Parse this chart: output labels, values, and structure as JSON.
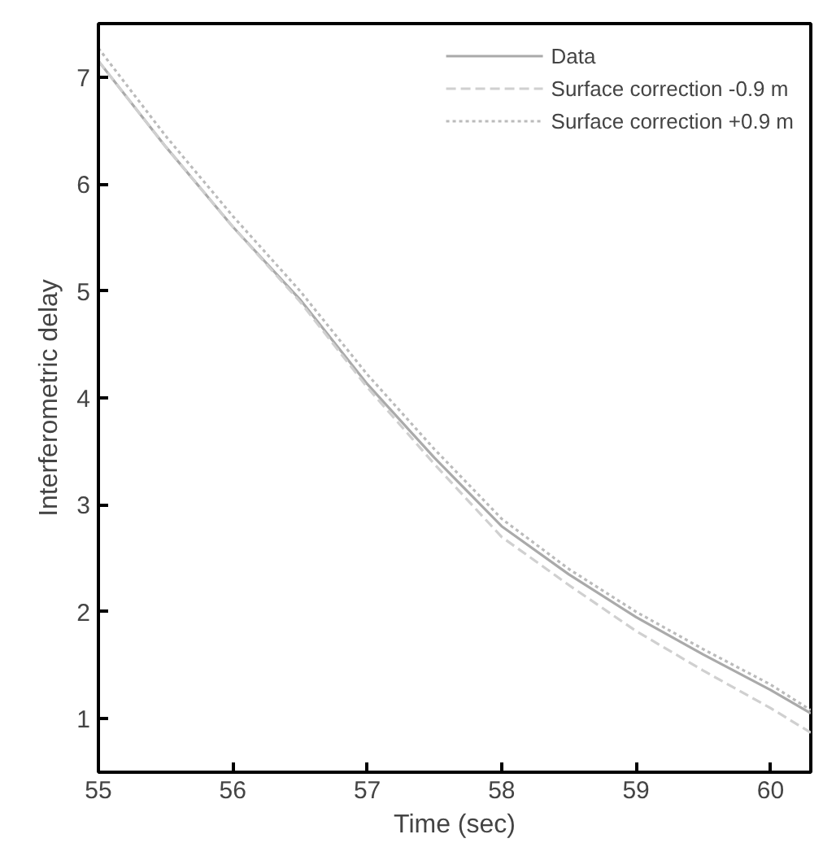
{
  "chart_data": {
    "type": "line",
    "xlabel": "Time (sec)",
    "ylabel": "Interferometric delay",
    "x": [
      55,
      55.5,
      56,
      56.5,
      57,
      57.5,
      58,
      58.5,
      59,
      59.5,
      60,
      60.3
    ],
    "series": [
      {
        "name": "Data",
        "color": "#aaaaaa",
        "line_style": "solid",
        "values": [
          7.15,
          6.35,
          5.6,
          4.92,
          4.13,
          3.44,
          2.8,
          2.35,
          1.95,
          1.6,
          1.27,
          1.05
        ]
      },
      {
        "name": "Surface correction -0.9 m",
        "color": "#d0d0d0",
        "line_style": "dashed",
        "values": [
          7.15,
          6.35,
          5.6,
          4.9,
          4.1,
          3.38,
          2.7,
          2.25,
          1.82,
          1.45,
          1.1,
          0.87
        ]
      },
      {
        "name": "Surface correction +0.9 m",
        "color": "#bbbbbb",
        "line_style": "dotted",
        "values": [
          7.27,
          6.45,
          5.7,
          5.0,
          4.22,
          3.52,
          2.87,
          2.4,
          2.0,
          1.65,
          1.32,
          1.08
        ]
      }
    ],
    "xlim": [
      55,
      60.3
    ],
    "ylim": [
      0.5,
      7.5
    ],
    "xticks": [
      55,
      56,
      57,
      58,
      59,
      60
    ],
    "yticks": [
      1,
      2,
      3,
      4,
      5,
      6,
      7
    ],
    "grid": false,
    "legend": "top right"
  }
}
